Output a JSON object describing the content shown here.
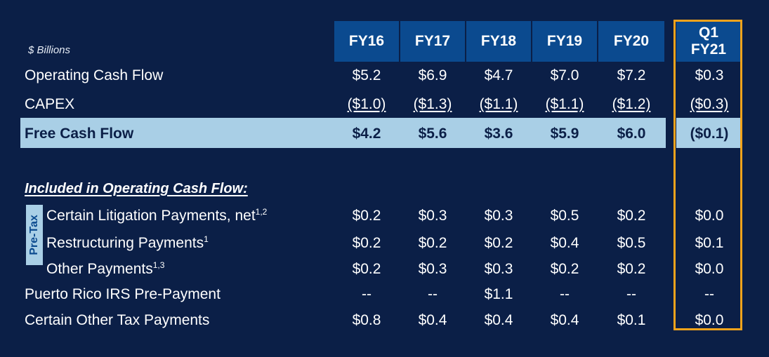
{
  "units_label": "$ Billions",
  "headers": [
    "FY16",
    "FY17",
    "FY18",
    "FY19",
    "FY20",
    "Q1 FY21"
  ],
  "header_q1_line1": "Q1",
  "header_q1_line2": "FY21",
  "section_label": "Included in Operating Cash Flow:",
  "pretax_label": "Pre-Tax",
  "rows": {
    "ocf": {
      "label": "Operating Cash Flow",
      "values": [
        "$5.2",
        "$6.9",
        "$4.7",
        "$7.0",
        "$7.2",
        "$0.3"
      ]
    },
    "capex": {
      "label": "CAPEX",
      "values": [
        "($1.0)",
        "($1.3)",
        "($1.1)",
        "($1.1)",
        "($1.2)",
        "($0.3)"
      ]
    },
    "fcf": {
      "label": "Free Cash Flow",
      "values": [
        "$4.2",
        "$5.6",
        "$3.6",
        "$5.9",
        "$6.0",
        "($0.1)"
      ]
    },
    "litigation": {
      "label": "Certain Litigation Payments, net",
      "sup": "1,2",
      "values": [
        "$0.2",
        "$0.3",
        "$0.3",
        "$0.5",
        "$0.2",
        "$0.0"
      ]
    },
    "restructuring": {
      "label": "Restructuring Payments",
      "sup": "1",
      "values": [
        "$0.2",
        "$0.2",
        "$0.2",
        "$0.4",
        "$0.5",
        "$0.1"
      ]
    },
    "other": {
      "label": "Other Payments",
      "sup": "1,3",
      "values": [
        "$0.2",
        "$0.3",
        "$0.3",
        "$0.2",
        "$0.2",
        "$0.0"
      ]
    },
    "puerto_rico": {
      "label": "Puerto Rico IRS Pre-Payment",
      "values": [
        "--",
        "--",
        "$1.1",
        "--",
        "--",
        "--"
      ]
    },
    "other_tax": {
      "label": "Certain Other Tax Payments",
      "values": [
        "$0.8",
        "$0.4",
        "$0.4",
        "$0.4",
        "$0.1",
        "$0.0"
      ]
    }
  },
  "colors": {
    "background": "#0b1f47",
    "header": "#0b4a8f",
    "highlight": "#a9cfe6",
    "q1_border": "#f2a31b"
  }
}
